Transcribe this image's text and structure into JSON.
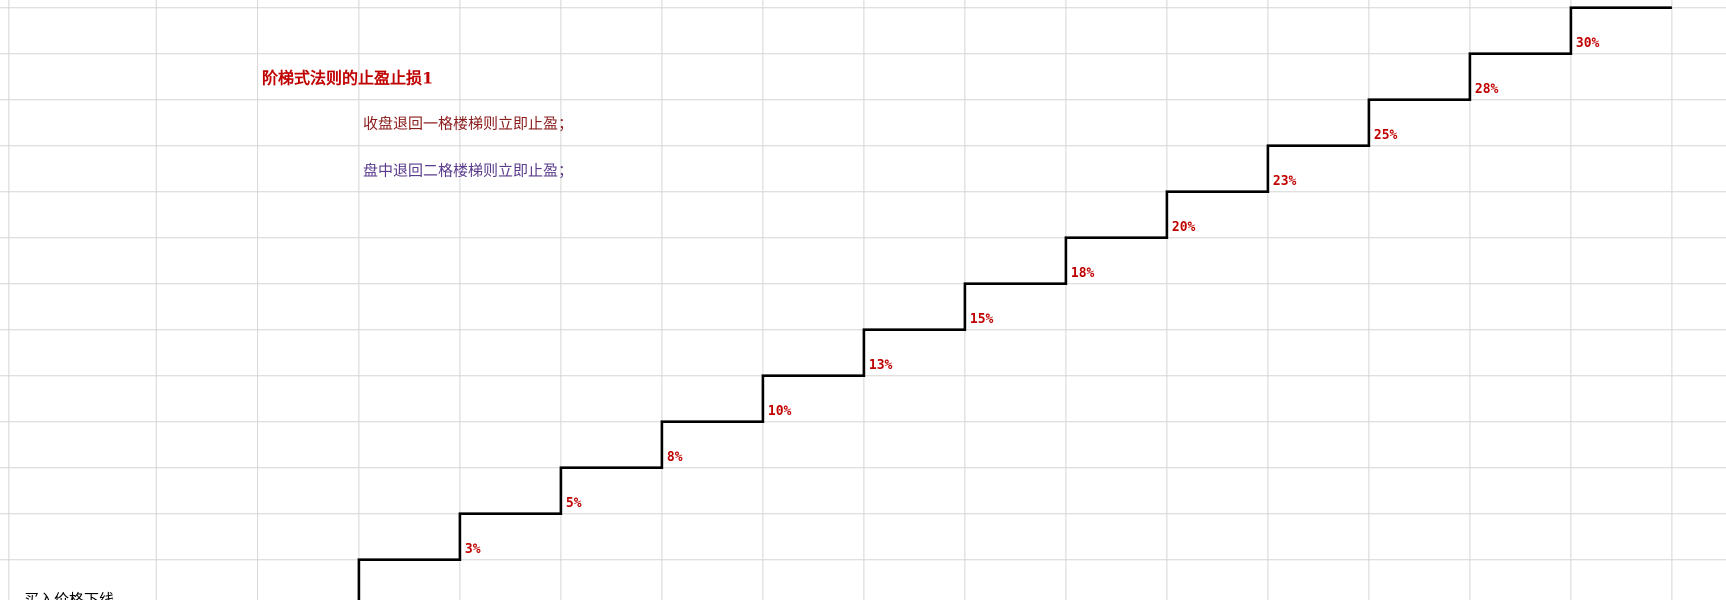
{
  "title": "阶梯式法则的止盈止损1",
  "notes": [
    "收盘退回一格楼梯则立即止盈；",
    "盘中退回二格楼梯则立即止盈；"
  ],
  "footer": "买入价格下线",
  "steps": [
    "3%",
    "5%",
    "8%",
    "10%",
    "13%",
    "15%",
    "18%",
    "20%",
    "23%",
    "25%",
    "28%",
    "30%"
  ]
}
